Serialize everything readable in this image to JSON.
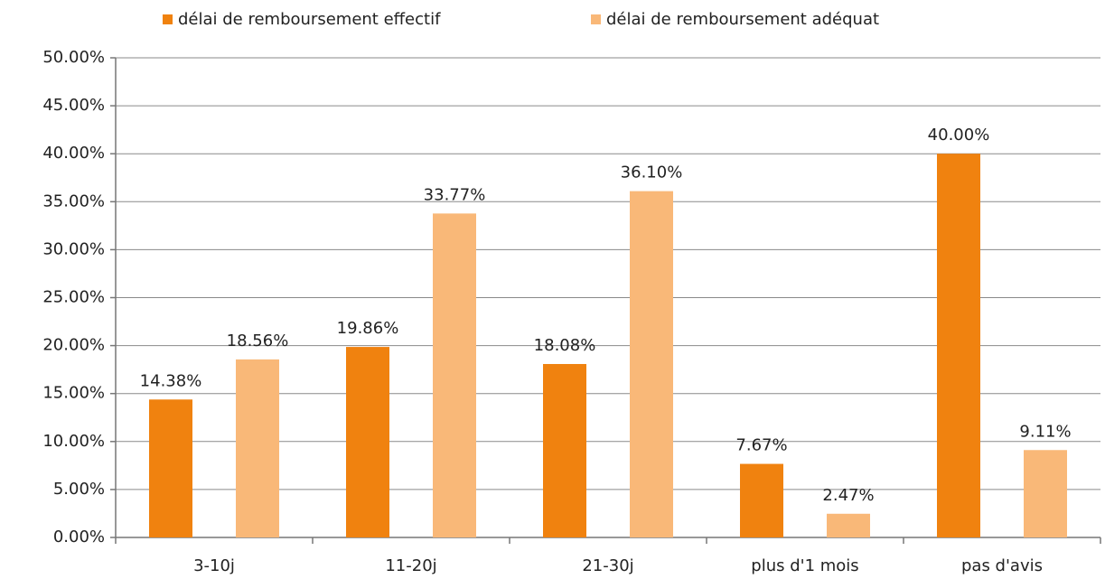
{
  "chart_data": {
    "type": "bar",
    "categories": [
      "3-10j",
      "11-20j",
      "21-30j",
      "plus d'1 mois",
      "pas d'avis"
    ],
    "series": [
      {
        "name": "délai de remboursement effectif",
        "color": "#f0820f",
        "values": [
          14.38,
          19.86,
          18.08,
          7.67,
          40.0
        ],
        "value_labels": [
          "14.38%",
          "19.86%",
          "18.08%",
          "7.67%",
          "40.00%"
        ]
      },
      {
        "name": "délai de remboursement adéquat",
        "color": "#f9b878",
        "values": [
          18.56,
          33.77,
          36.1,
          2.47,
          9.11
        ],
        "value_labels": [
          "18.56%",
          "33.77%",
          "36.10%",
          "2.47%",
          "9.11%"
        ]
      }
    ],
    "ylim": [
      0,
      50
    ],
    "yticks": [
      {
        "value": 0,
        "label": "0.00%"
      },
      {
        "value": 5,
        "label": "5.00%"
      },
      {
        "value": 10,
        "label": "10.00%"
      },
      {
        "value": 15,
        "label": "15.00%"
      },
      {
        "value": 20,
        "label": "20.00%"
      },
      {
        "value": 25,
        "label": "25.00%"
      },
      {
        "value": 30,
        "label": "30.00%"
      },
      {
        "value": 35,
        "label": "35.00%"
      },
      {
        "value": 40,
        "label": "40.00%"
      },
      {
        "value": 45,
        "label": "45.00%"
      },
      {
        "value": 50,
        "label": "50.00%"
      }
    ],
    "grid": true,
    "legend": "top"
  }
}
